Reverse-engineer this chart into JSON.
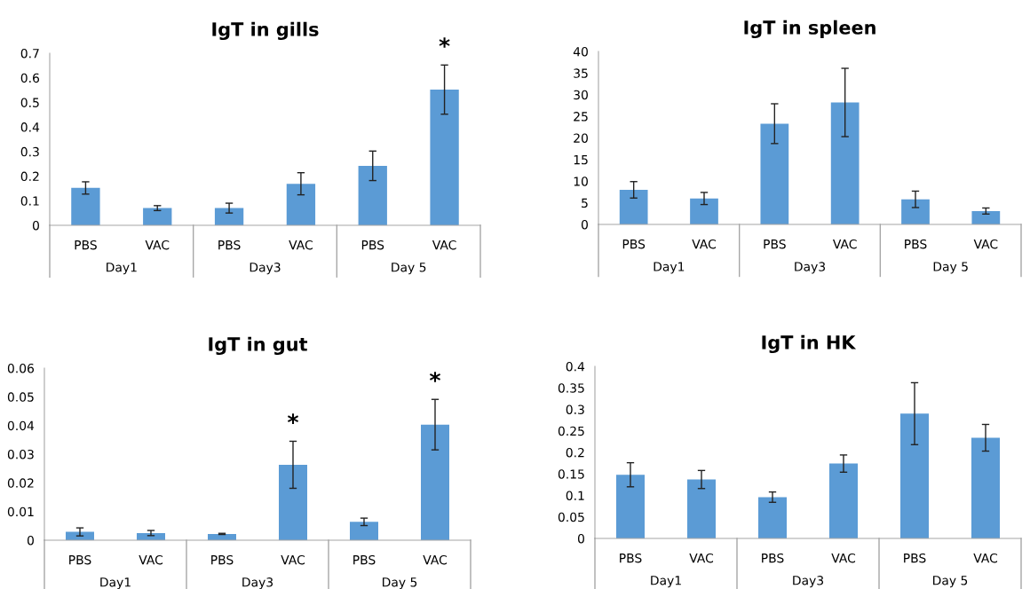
{
  "chart_data": [
    {
      "type": "bar",
      "title": "IgT in gills",
      "categories": [
        "PBS",
        "VAC",
        "PBS",
        "VAC",
        "PBS",
        "VAC"
      ],
      "color": "#5b9bd5",
      "values": [
        0.152,
        0.07,
        0.07,
        0.169,
        0.242,
        0.552
      ],
      "errors": [
        0.025,
        0.01,
        0.02,
        0.045,
        0.06,
        0.1
      ],
      "ylim": [
        0,
        0.7
      ],
      "yticks": [
        0,
        0.1,
        0.2,
        0.3,
        0.4,
        0.5,
        0.6,
        0.7
      ],
      "grid": false,
      "legend": false,
      "annotations": [
        "Day1",
        "Day3",
        "Day 5",
        "*"
      ]
    },
    {
      "type": "bar",
      "title": "IgT in spleen",
      "categories": [
        "PBS",
        "VAC",
        "PBS",
        "VAC",
        "PBS",
        "VAC"
      ],
      "color": "#5b9bd5",
      "values": [
        8.0,
        6.0,
        23.3,
        28.2,
        5.8,
        3.1
      ],
      "errors": [
        1.9,
        1.4,
        4.6,
        7.9,
        1.9,
        0.7
      ],
      "ylim": [
        0,
        40
      ],
      "yticks": [
        0,
        5,
        10,
        15,
        20,
        25,
        30,
        35,
        40
      ],
      "grid": false,
      "legend": false,
      "annotations": [
        "Day1",
        "Day3",
        "Day 5"
      ]
    },
    {
      "type": "bar",
      "title": "IgT in gut",
      "categories": [
        "PBS",
        "VAC",
        "PBS",
        "VAC",
        "PBS",
        "VAC"
      ],
      "color": "#5b9bd5",
      "values": [
        0.0029,
        0.0025,
        0.0022,
        0.0263,
        0.0064,
        0.0403
      ],
      "errors": [
        0.0014,
        0.0009,
        0.0002,
        0.0082,
        0.0013,
        0.0088
      ],
      "ylim": [
        0,
        0.06
      ],
      "yticks": [
        0,
        0.01,
        0.02,
        0.03,
        0.04,
        0.05,
        0.06
      ],
      "grid": false,
      "legend": false,
      "annotations": [
        "Day1",
        "Day3",
        "Day 5",
        "*",
        "*"
      ]
    },
    {
      "type": "bar",
      "title": "IgT in HK",
      "categories": [
        "PBS",
        "VAC",
        "PBS",
        "VAC",
        "PBS",
        "VAC"
      ],
      "color": "#5b9bd5",
      "values": [
        0.148,
        0.137,
        0.096,
        0.174,
        0.29,
        0.234
      ],
      "errors": [
        0.028,
        0.021,
        0.012,
        0.02,
        0.072,
        0.031
      ],
      "ylim": [
        0,
        0.4
      ],
      "yticks": [
        0,
        0.05,
        0.1,
        0.15,
        0.2,
        0.25,
        0.3,
        0.35,
        0.4
      ],
      "grid": false,
      "legend": false,
      "annotations": [
        "Day1",
        "Day3",
        "Day 5"
      ]
    }
  ]
}
